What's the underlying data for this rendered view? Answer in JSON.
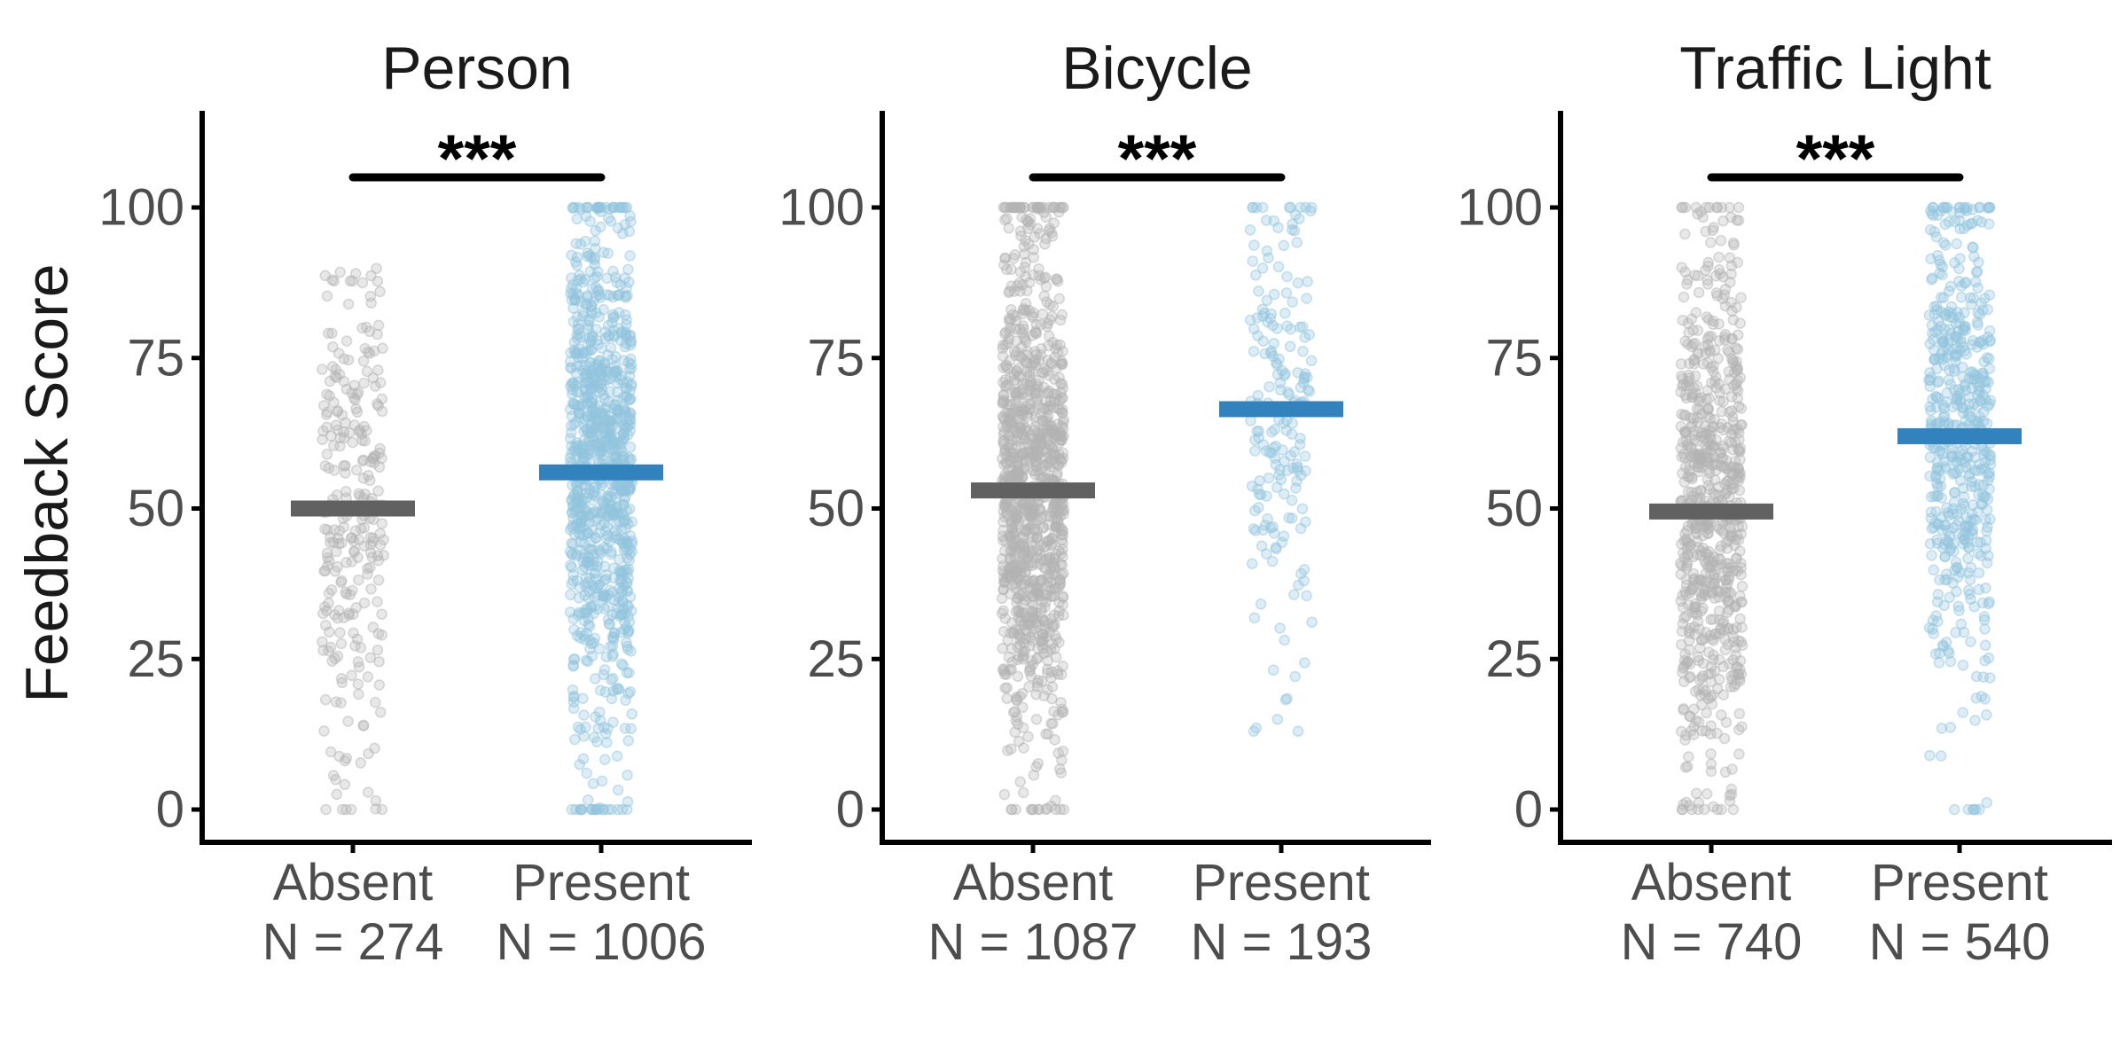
{
  "chart_data": {
    "type": "scatter",
    "ylabel": "Feedback Score",
    "ylim": [
      -5,
      115
    ],
    "yticks": [
      0,
      25,
      50,
      75,
      100
    ],
    "grid": false,
    "colors": {
      "absent_points": "#b3b3b3",
      "present_points": "#92c5de",
      "absent_mean": "#616161",
      "present_mean": "#3182bd",
      "axis": "#000000"
    },
    "facets": [
      {
        "title": "Person",
        "significance": "***",
        "groups": [
          {
            "name": "Absent",
            "n_label": "N = 274",
            "n": 274,
            "mean": 50,
            "min": 0,
            "max": 91
          },
          {
            "name": "Present",
            "n_label": "N = 1006",
            "n": 1006,
            "mean": 56,
            "min": 0,
            "max": 100
          }
        ]
      },
      {
        "title": "Bicycle",
        "significance": "***",
        "groups": [
          {
            "name": "Absent",
            "n_label": "N = 1087",
            "n": 1087,
            "mean": 53,
            "min": 0,
            "max": 100
          },
          {
            "name": "Present",
            "n_label": "N = 193",
            "n": 193,
            "mean": 66.5,
            "min": 13,
            "max": 100
          }
        ]
      },
      {
        "title": "Traffic Light",
        "significance": "***",
        "groups": [
          {
            "name": "Absent",
            "n_label": "N = 740",
            "n": 740,
            "mean": 49.5,
            "min": 0,
            "max": 100
          },
          {
            "name": "Present",
            "n_label": "N = 540",
            "n": 540,
            "mean": 62,
            "min": 0,
            "max": 100
          }
        ]
      }
    ]
  }
}
